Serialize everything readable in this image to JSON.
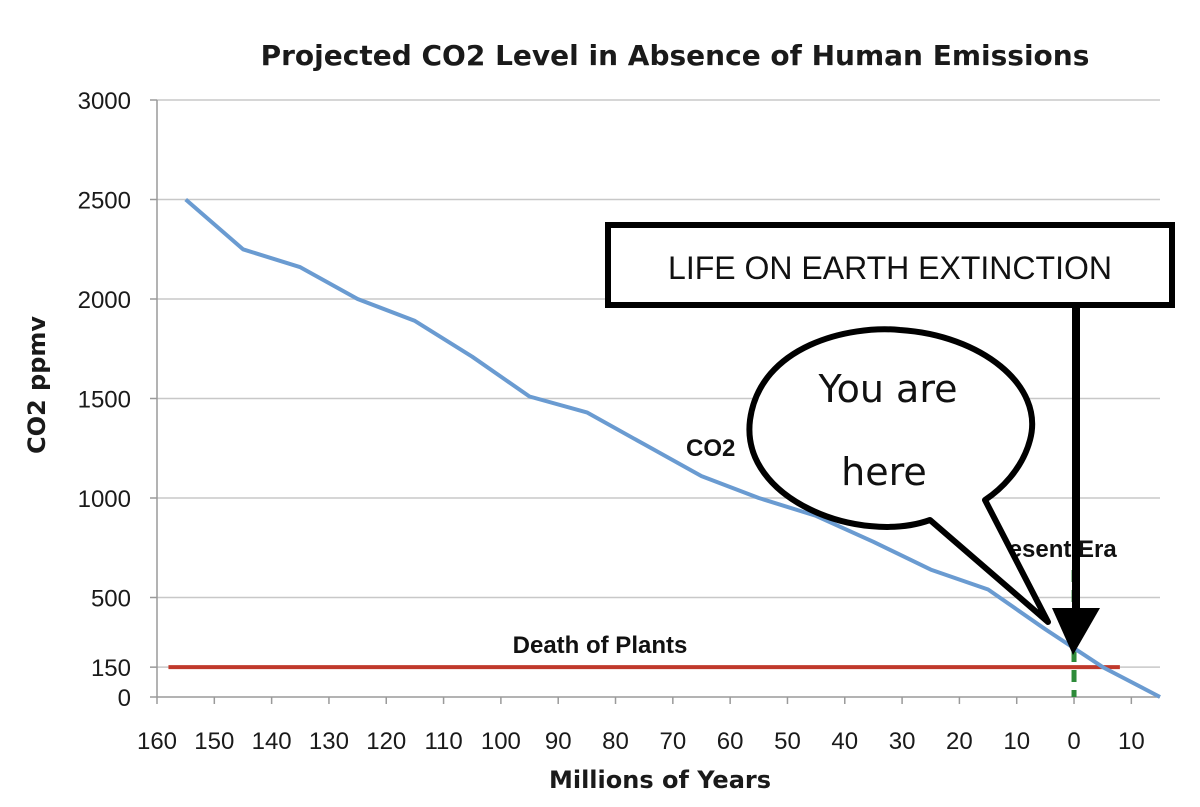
{
  "chart_data": {
    "type": "line",
    "title": "Projected CO2 Level in Absence of Human Emissions",
    "xlabel": "Millions of Years",
    "ylabel": "CO2 ppmv",
    "xlim": [
      160,
      -15
    ],
    "ylim": [
      0,
      3000
    ],
    "x_ticks": [
      160,
      150,
      140,
      130,
      120,
      110,
      100,
      90,
      80,
      70,
      60,
      50,
      40,
      30,
      20,
      10,
      0,
      -10
    ],
    "x_tick_labels": [
      "160",
      "150",
      "140",
      "130",
      "120",
      "110",
      "100",
      "90",
      "80",
      "70",
      "60",
      "50",
      "40",
      "30",
      "20",
      "10",
      "0",
      "10"
    ],
    "y_ticks": [
      0,
      150,
      500,
      1000,
      1500,
      2000,
      2500,
      3000
    ],
    "y_tick_labels": [
      "0",
      "150",
      "500",
      "1000",
      "1500",
      "2000",
      "2500",
      "3000"
    ],
    "grid": true,
    "series": [
      {
        "name": "CO2",
        "color": "#6a9bd1",
        "x": [
          155,
          145,
          135,
          125,
          115,
          105,
          95,
          85,
          75,
          65,
          55,
          45,
          35,
          25,
          15,
          5,
          -5,
          -15
        ],
        "y": [
          2500,
          2250,
          2160,
          2000,
          1890,
          1710,
          1510,
          1430,
          1270,
          1110,
          1000,
          910,
          780,
          640,
          540,
          340,
          150,
          0
        ]
      }
    ],
    "reference_lines": [
      {
        "label": "Death of Plants",
        "y": 150,
        "color": "#c0392b"
      },
      {
        "label": "Present Era",
        "x": 0,
        "color": "#2e8b3a"
      }
    ],
    "series_label": "CO2",
    "annotations": {
      "box": "LIFE ON EARTH EXTINCTION",
      "bubble_line1": "You are",
      "bubble_line2": "here"
    }
  }
}
